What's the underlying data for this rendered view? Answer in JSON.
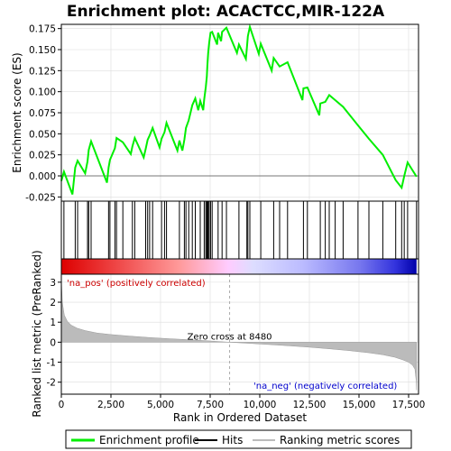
{
  "chart_data": {
    "type": "line",
    "title": "Enrichment plot: ACACTCC,MIR-122A",
    "xlabel": "Rank in Ordered Dataset",
    "es_ylabel": "Enrichment score (ES)",
    "metric_ylabel": "Ranked list metric (PreRanked)",
    "x_range": [
      0,
      18000
    ],
    "x_ticks": [
      0,
      2500,
      5000,
      7500,
      10000,
      12500,
      15000,
      17500
    ],
    "x_tick_labels": [
      "0",
      "2,500",
      "5,000",
      "7,500",
      "10,000",
      "12,500",
      "15,000",
      "17,500"
    ],
    "es_ylim": [
      -0.03,
      0.18
    ],
    "es_ticks": [
      -0.025,
      0.0,
      0.025,
      0.05,
      0.075,
      0.1,
      0.125,
      0.15,
      0.175
    ],
    "es_tick_labels": [
      "-0.025",
      "0.000",
      "0.025",
      "0.050",
      "0.075",
      "0.100",
      "0.125",
      "0.150",
      "0.175"
    ],
    "metric_ylim": [
      -2.6,
      3.4
    ],
    "metric_ticks": [
      -2,
      -1,
      0,
      1,
      2,
      3
    ],
    "metric_tick_labels": [
      "-2",
      "-1",
      "0",
      "1",
      "2",
      "3"
    ],
    "zero_cross_rank": 8480,
    "zero_cross_label": "Zero cross at 8480",
    "pos_label": "'na_pos' (positively correlated)",
    "neg_label": "'na_neg' (negatively correlated)",
    "total_genes": 17900,
    "grid": true,
    "legend_position": "bottom",
    "colors": {
      "es_line": "#00ee00",
      "hits": "#000000",
      "metric_fill": "#bbbbbb",
      "zero_line": "#aaaaaa",
      "pos_text": "#cc0000",
      "neg_text": "#0000cc",
      "grid": "#dddddd"
    },
    "hits": [
      130,
      700,
      820,
      1320,
      1380,
      1500,
      2380,
      2450,
      2700,
      2780,
      3100,
      3580,
      3700,
      4250,
      4350,
      4450,
      4600,
      5050,
      5200,
      5300,
      5950,
      6200,
      6280,
      6420,
      6600,
      6750,
      7000,
      7200,
      7280,
      7330,
      7360,
      7400,
      7450,
      7520,
      7600,
      7900,
      8100,
      8320,
      8950,
      9350,
      9400,
      9500,
      10050,
      10700,
      11000,
      11400,
      12200,
      12400,
      13050,
      13300,
      13500,
      13800,
      14200,
      14950,
      15500,
      16200,
      16850,
      17150,
      17280,
      17450,
      17900
    ],
    "es_curve": {
      "x": [
        0,
        130,
        560,
        700,
        820,
        1200,
        1320,
        1380,
        1500,
        2300,
        2380,
        2450,
        2700,
        2780,
        3100,
        3500,
        3580,
        3700,
        4150,
        4250,
        4350,
        4450,
        4600,
        4950,
        5050,
        5200,
        5300,
        5850,
        5950,
        6100,
        6200,
        6280,
        6420,
        6600,
        6750,
        6900,
        7000,
        7150,
        7200,
        7280,
        7330,
        7360,
        7400,
        7450,
        7520,
        7600,
        7850,
        7900,
        8050,
        8100,
        8320,
        8850,
        8950,
        9300,
        9350,
        9400,
        9500,
        9950,
        10050,
        10600,
        10700,
        11000,
        11400,
        12150,
        12200,
        12400,
        13000,
        13050,
        13300,
        13500,
        13800,
        14200,
        14950,
        15500,
        16200,
        16850,
        17150,
        17280,
        17450,
        17900
      ],
      "y": [
        -0.006,
        0.005,
        -0.022,
        0.01,
        0.018,
        0.003,
        0.017,
        0.031,
        0.041,
        -0.008,
        0.01,
        0.019,
        0.033,
        0.045,
        0.04,
        0.026,
        0.035,
        0.045,
        0.022,
        0.032,
        0.043,
        0.048,
        0.057,
        0.034,
        0.044,
        0.052,
        0.063,
        0.03,
        0.042,
        0.03,
        0.043,
        0.057,
        0.066,
        0.084,
        0.092,
        0.078,
        0.089,
        0.078,
        0.091,
        0.106,
        0.118,
        0.131,
        0.146,
        0.158,
        0.17,
        0.171,
        0.156,
        0.17,
        0.16,
        0.171,
        0.176,
        0.146,
        0.156,
        0.139,
        0.152,
        0.166,
        0.177,
        0.145,
        0.157,
        0.125,
        0.14,
        0.13,
        0.135,
        0.09,
        0.104,
        0.105,
        0.072,
        0.086,
        0.088,
        0.096,
        0.09,
        0.082,
        0.06,
        0.044,
        0.025,
        -0.005,
        -0.014,
        0.0,
        0.016,
        -0.001
      ]
    },
    "metric_curve": {
      "rank": [
        0,
        50,
        150,
        300,
        500,
        800,
        1200,
        1800,
        2500,
        3500,
        4500,
        5500,
        6500,
        7500,
        8480,
        9500,
        10500,
        11500,
        12500,
        13500,
        14500,
        15500,
        16200,
        16800,
        17200,
        17500,
        17700,
        17820,
        17880,
        17900
      ],
      "value": [
        3.2,
        2.0,
        1.35,
        1.05,
        0.85,
        0.7,
        0.58,
        0.46,
        0.38,
        0.3,
        0.23,
        0.17,
        0.12,
        0.06,
        0.0,
        -0.06,
        -0.12,
        -0.18,
        -0.25,
        -0.33,
        -0.42,
        -0.53,
        -0.63,
        -0.75,
        -0.88,
        -1.0,
        -1.15,
        -1.35,
        -1.9,
        -2.4
      ]
    }
  },
  "legend": {
    "items": [
      {
        "label": "Enrichment profile",
        "color": "#00ee00"
      },
      {
        "label": "Hits",
        "color": "#000000"
      },
      {
        "label": "Ranking metric scores",
        "color": "#bbbbbb"
      }
    ]
  }
}
